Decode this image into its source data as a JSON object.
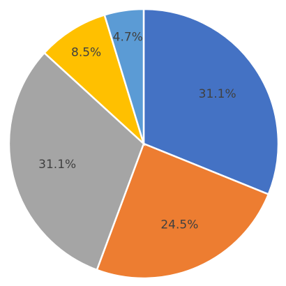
{
  "chart_data": {
    "type": "pie",
    "values": [
      31.1,
      24.5,
      31.1,
      8.5,
      4.7
    ],
    "value_labels": [
      "31.1%",
      "24.5%",
      "31.1%",
      "8.5%",
      "4.7%"
    ],
    "colors": [
      "#4472c4",
      "#ed7d31",
      "#a5a5a5",
      "#ffc000",
      "#5b9bd5"
    ]
  }
}
